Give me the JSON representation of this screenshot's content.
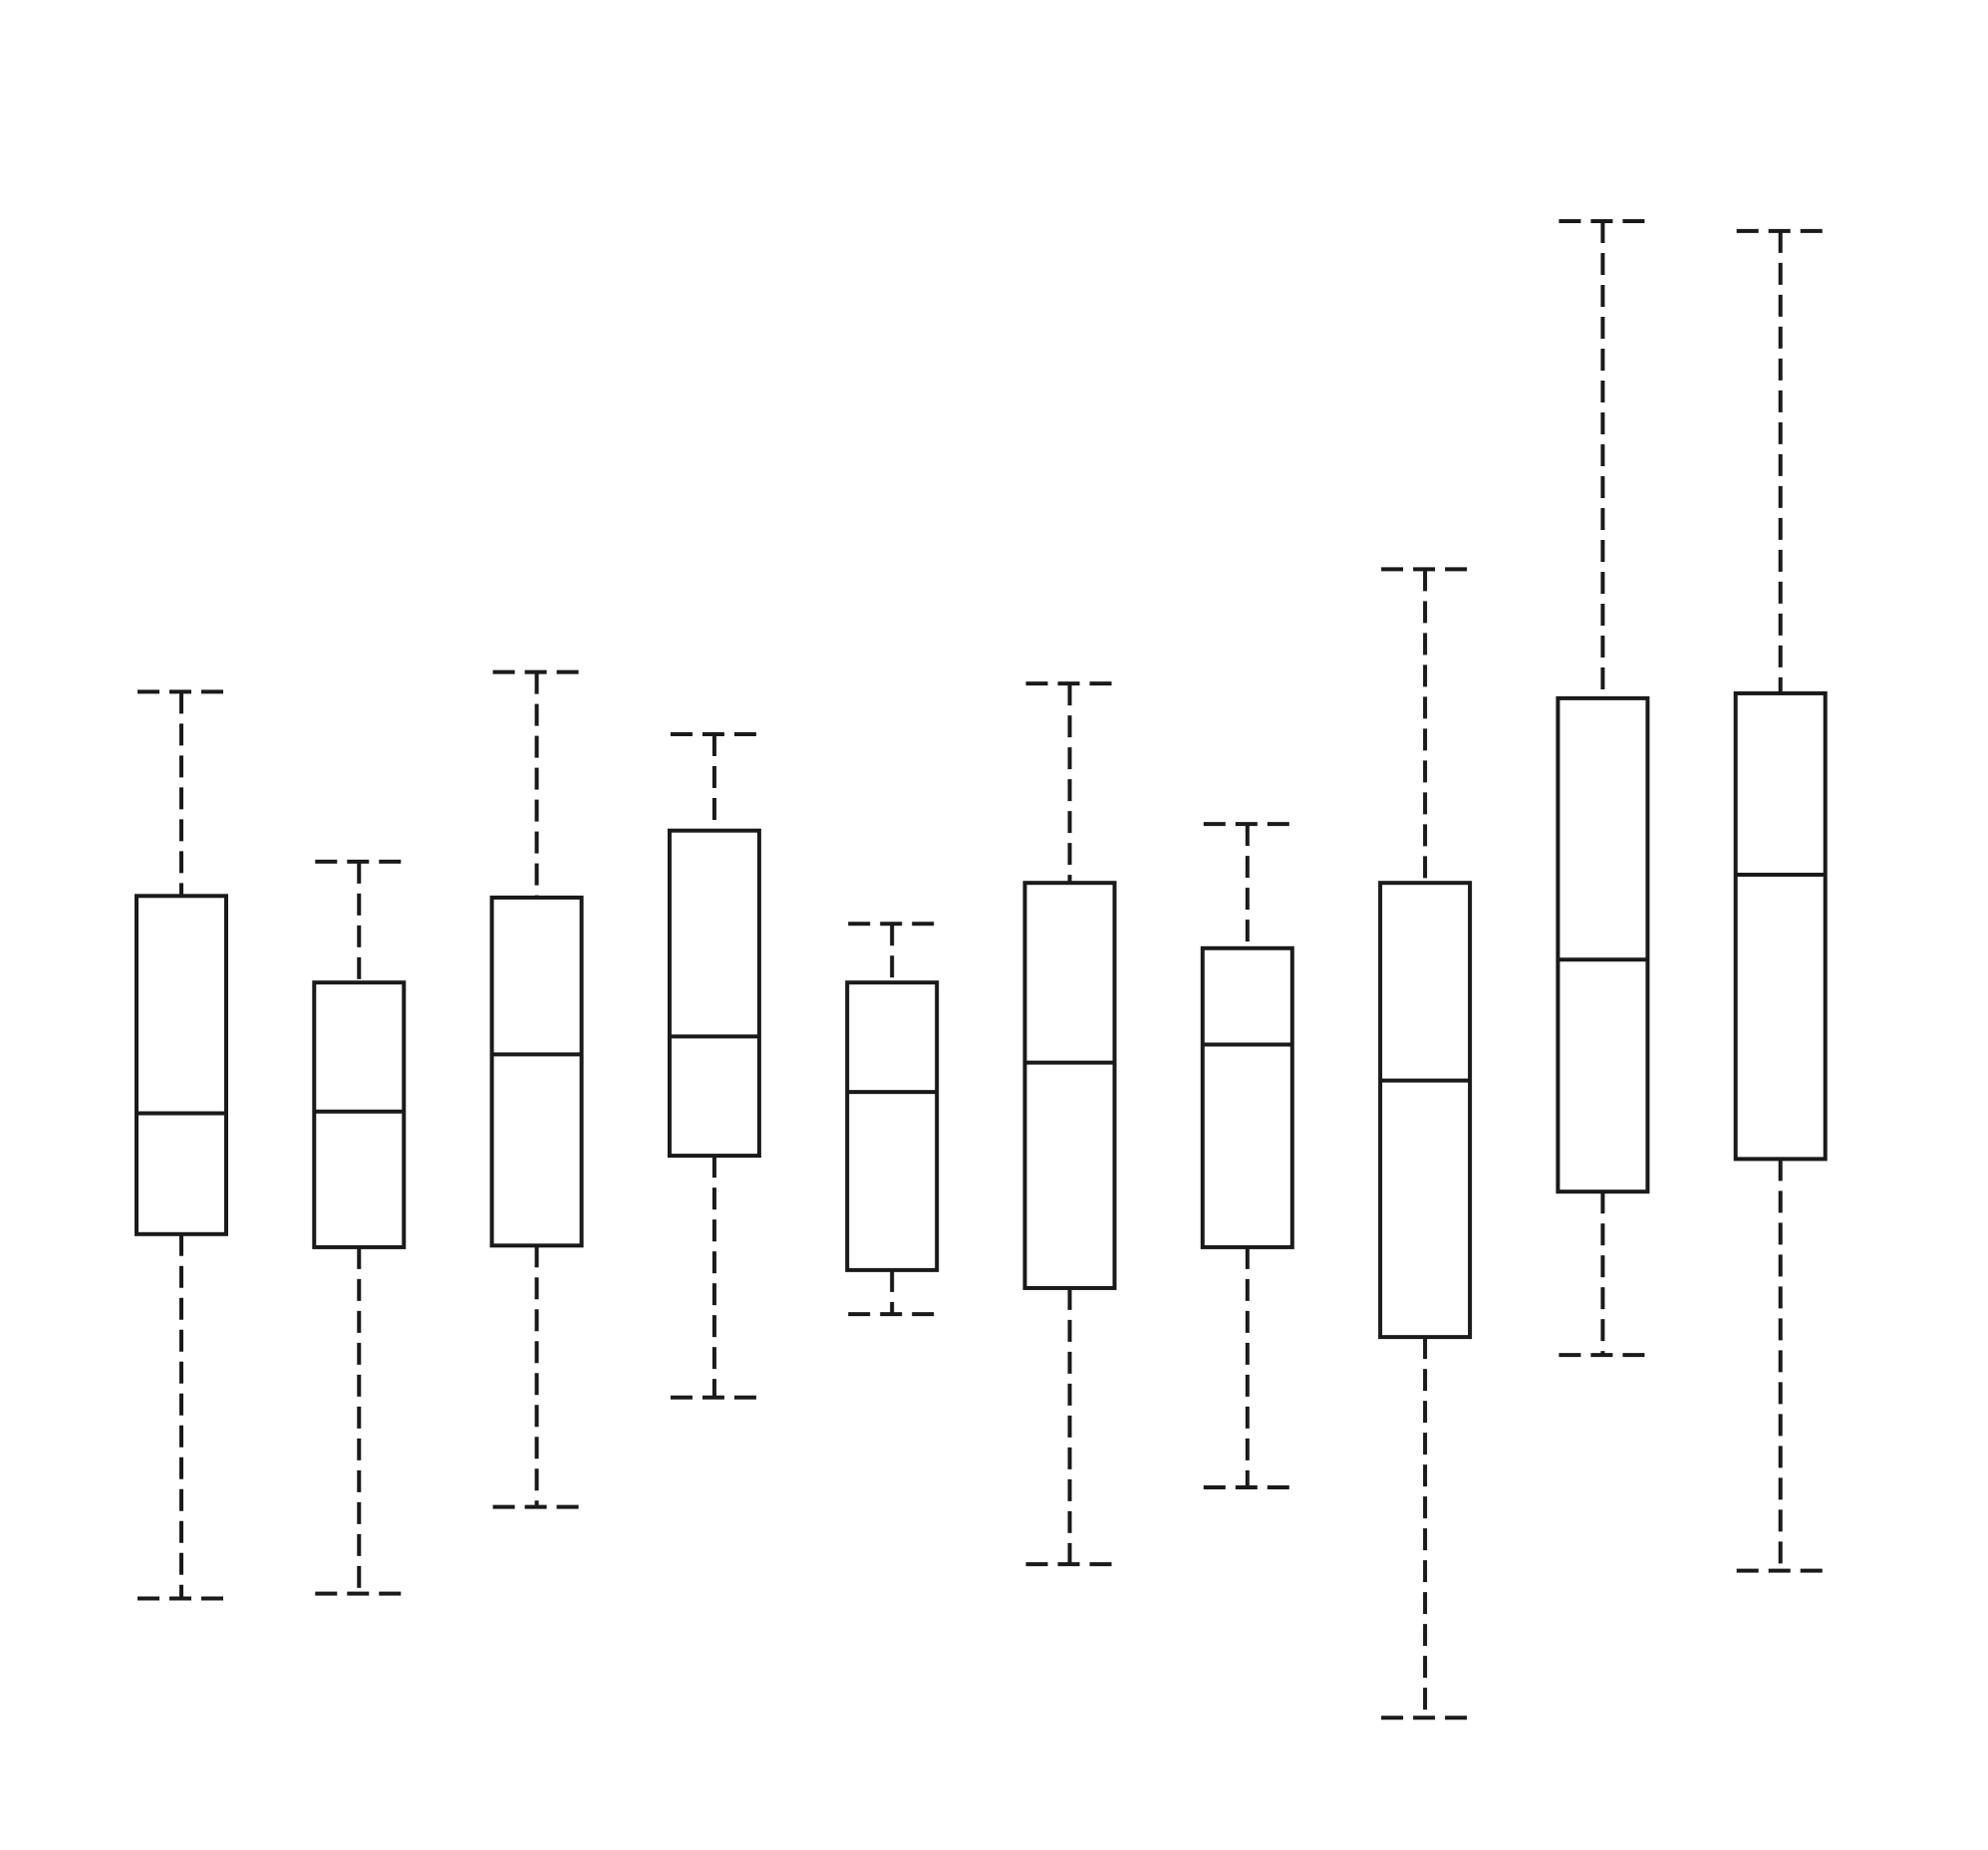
{
  "chart_data": {
    "type": "box",
    "title": "",
    "xlabel": "",
    "ylabel": "",
    "axes_visible": false,
    "grid": false,
    "legend": "none",
    "ylim": [
      0,
      100
    ],
    "colors": {
      "stroke": "#1a1a1a",
      "box_fill": "#ffffff",
      "background": "#ffffff"
    },
    "boxes": [
      {
        "min": 10.7,
        "q1": 33.0,
        "median": 40.4,
        "q3": 53.7,
        "max": 66.2
      },
      {
        "min": 11.0,
        "q1": 32.2,
        "median": 40.5,
        "q3": 48.4,
        "max": 55.8
      },
      {
        "min": 16.3,
        "q1": 32.3,
        "median": 44.0,
        "q3": 53.6,
        "max": 67.4
      },
      {
        "min": 23.0,
        "q1": 37.8,
        "median": 45.1,
        "q3": 57.7,
        "max": 63.6
      },
      {
        "min": 28.1,
        "q1": 30.8,
        "median": 41.7,
        "q3": 48.4,
        "max": 52.0
      },
      {
        "min": 12.8,
        "q1": 29.7,
        "median": 43.5,
        "q3": 54.5,
        "max": 66.7
      },
      {
        "min": 17.5,
        "q1": 32.2,
        "median": 44.6,
        "q3": 50.5,
        "max": 58.1
      },
      {
        "min": 3.4,
        "q1": 26.7,
        "median": 42.4,
        "q3": 54.5,
        "max": 73.7
      },
      {
        "min": 25.6,
        "q1": 35.6,
        "median": 49.8,
        "q3": 65.8,
        "max": 95.0
      },
      {
        "min": 12.4,
        "q1": 37.6,
        "median": 55.0,
        "q3": 66.1,
        "max": 94.4
      }
    ]
  }
}
